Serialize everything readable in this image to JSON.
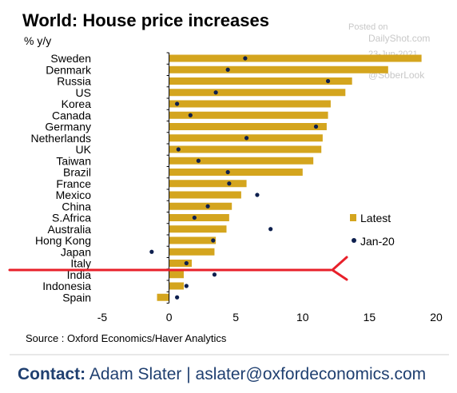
{
  "page": {
    "title": "World: House price increases",
    "unit_label": "% y/y",
    "source": "Source : Oxford Economics/Haver Analytics",
    "watermark": {
      "line1": "Posted on",
      "line2": "DailyShot.com",
      "line3": "23-Jun-2021",
      "line4": "@SoberLook"
    },
    "contact": {
      "label": "Contact:",
      "text": " Adam Slater | aslater@oxfordeconomics.com"
    }
  },
  "chart_data": {
    "type": "bar",
    "orientation": "horizontal",
    "title": "World: House price increases",
    "ylabel": "% y/y",
    "categories": [
      "Sweden",
      "Denmark",
      "Russia",
      "US",
      "Korea",
      "Canada",
      "Germany",
      "Netherlands",
      "UK",
      "Taiwan",
      "Brazil",
      "France",
      "Mexico",
      "China",
      "S.Africa",
      "Australia",
      "Hong Kong",
      "Japan",
      "Italy",
      "India",
      "Indonesia",
      "Spain"
    ],
    "series": [
      {
        "name": "Latest",
        "marker": "bar",
        "color": "#d4a51e",
        "values": [
          18.9,
          16.4,
          13.7,
          13.2,
          12.1,
          11.9,
          11.8,
          11.5,
          11.4,
          10.8,
          10.0,
          5.8,
          5.4,
          4.7,
          4.5,
          4.3,
          3.5,
          3.4,
          1.7,
          1.1,
          1.1,
          -0.9
        ]
      },
      {
        "name": "Jan-20",
        "marker": "dot",
        "color": "#0d1f4e",
        "values": [
          5.7,
          4.4,
          11.9,
          3.5,
          0.6,
          1.6,
          11.0,
          5.8,
          0.7,
          2.2,
          4.4,
          4.5,
          6.6,
          2.9,
          1.9,
          7.6,
          3.3,
          -1.3,
          1.3,
          3.4,
          1.3,
          0.6
        ]
      }
    ],
    "xlim": [
      -5,
      20
    ],
    "xticks": [
      -5,
      0,
      5,
      10,
      15,
      20
    ],
    "legend_position": "right",
    "annotation": {
      "type": "red-arrow-underline",
      "target_category": "Italy",
      "color": "#e8202a"
    }
  }
}
